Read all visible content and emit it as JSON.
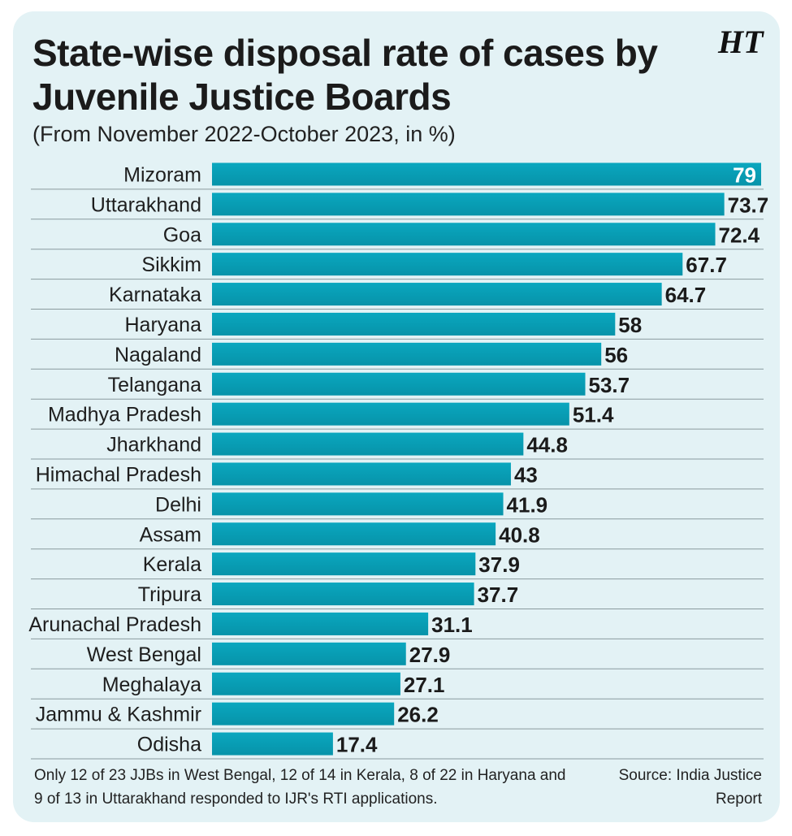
{
  "header": {
    "title": "State-wise disposal rate of cases by Juvenile Justice Boards",
    "subtitle": "(From November 2022-October 2023, in %)",
    "logo": "HT"
  },
  "footer": {
    "note": "Only 12 of 23 JJBs in West Bengal, 12 of 14 in Kerala, 8 of 22 in Haryana and 9 of 13 in Uttarakhand responded to IJR's RTI applications.",
    "source": "Source: India Justice Report"
  },
  "colors": {
    "bar": "#0aa7bf",
    "bar_dark": "#0793a9",
    "label_inside": "#ffffff",
    "label_outside": "#1b1b1b",
    "card": "#e3f2f5"
  },
  "chart_data": {
    "type": "bar",
    "orientation": "horizontal",
    "title": "State-wise disposal rate of cases by Juvenile Justice Boards",
    "subtitle": "(From November 2022-October 2023, in %)",
    "grid": false,
    "categories": [
      "Mizoram",
      "Uttarakhand",
      "Goa",
      "Sikkim",
      "Karnataka",
      "Haryana",
      "Nagaland",
      "Telangana",
      "Madhya Pradesh",
      "Jharkhand",
      "Himachal Pradesh",
      "Delhi",
      "Assam",
      "Kerala",
      "Tripura",
      "Arunachal Pradesh",
      "West Bengal",
      "Meghalaya",
      "Jammu & Kashmir",
      "Odisha"
    ],
    "values": [
      79,
      73.7,
      72.4,
      67.7,
      64.7,
      58,
      56,
      53.7,
      51.4,
      44.8,
      43,
      41.9,
      40.8,
      37.9,
      37.7,
      31.1,
      27.9,
      27.1,
      26.2,
      17.4
    ],
    "value_labels": [
      "79",
      "73.7",
      "72.4",
      "67.7",
      "64.7",
      "58",
      "56",
      "53.7",
      "51.4",
      "44.8",
      "43",
      "41.9",
      "40.8",
      "37.9",
      "37.7",
      "31.1",
      "27.9",
      "27.1",
      "26.2",
      "17.4"
    ],
    "xlim": [
      0,
      79
    ]
  }
}
